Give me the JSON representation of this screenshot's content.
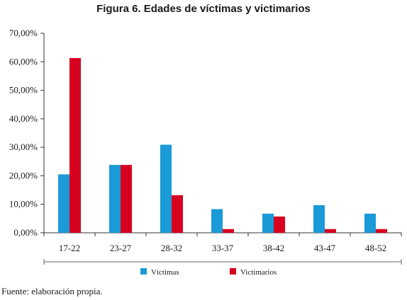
{
  "chart_data": {
    "type": "bar",
    "title": "Figura 6. Edades de víctimas y victimarios",
    "xlabel": "",
    "ylabel": "",
    "categories": [
      "17-22",
      "23-27",
      "28-32",
      "33-37",
      "38-42",
      "43-47",
      "48-52"
    ],
    "series": [
      {
        "name": "Víctimas",
        "color": "#1a9ad6",
        "values": [
          20.5,
          23.8,
          30.9,
          8.3,
          6.7,
          9.7,
          6.7
        ]
      },
      {
        "name": "Victimarios",
        "color": "#d8001f",
        "values": [
          61.3,
          23.8,
          13.2,
          1.3,
          5.7,
          1.3,
          1.3
        ]
      }
    ],
    "ylim": [
      0,
      70
    ],
    "yticks": [
      "0,00%",
      "10,00%",
      "20,00%",
      "30,00%",
      "40,00%",
      "50,00%",
      "60,00%",
      "70,00%"
    ],
    "grid": false,
    "legend": "bottom"
  },
  "footer": {
    "source": "Fuente: elaboración propia."
  }
}
